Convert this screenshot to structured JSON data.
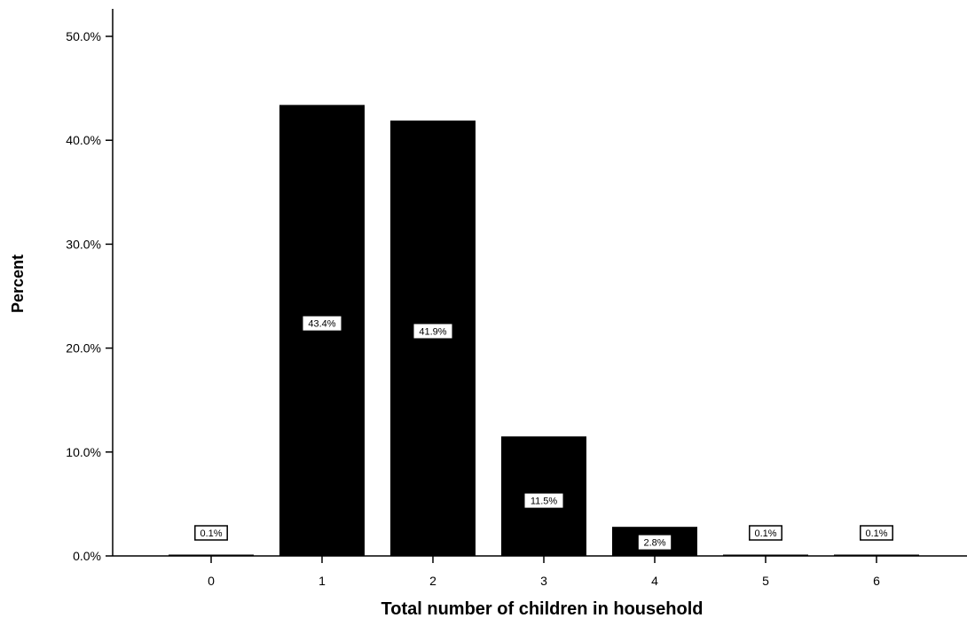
{
  "chart_data": {
    "type": "bar",
    "categories": [
      "0",
      "1",
      "2",
      "3",
      "4",
      "5",
      "6"
    ],
    "values": [
      0.1,
      43.4,
      41.9,
      11.5,
      2.8,
      0.1,
      0.1
    ],
    "data_labels": [
      "0.1%",
      "43.4%",
      "41.9%",
      "11.5%",
      "2.8%",
      "0.1%",
      "0.1%"
    ],
    "title": "",
    "xlabel": "Total number of children in household",
    "ylabel": "Percent",
    "ylim": [
      0,
      50
    ],
    "yticks": [
      0,
      10,
      20,
      30,
      40,
      50
    ],
    "ytick_labels": [
      "0.0%",
      "10.0%",
      "20.0%",
      "30.0%",
      "40.0%",
      "50.0%"
    ],
    "grid": false,
    "legend": "none",
    "bar_color": "#000000"
  }
}
